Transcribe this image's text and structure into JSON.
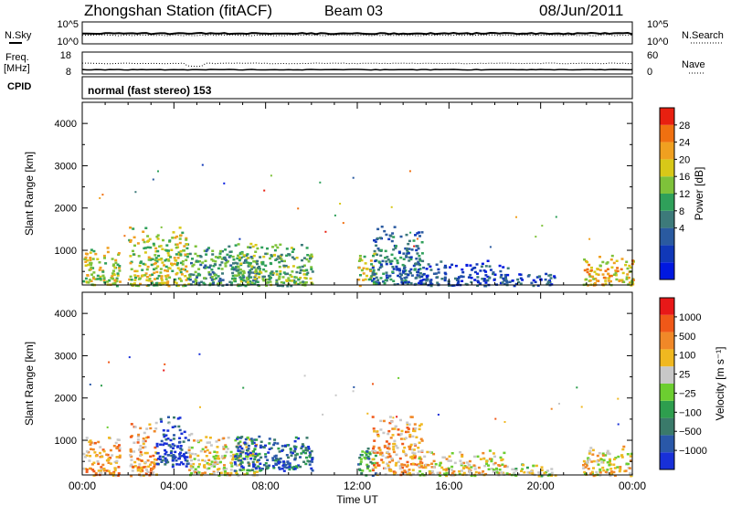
{
  "header": {
    "station": "Zhongshan Station (fitACF)",
    "beam": "Beam 03",
    "date": "08/Jun/2011"
  },
  "strips": {
    "nsky_label": "N.Sky",
    "nsky_ticks": [
      "10^5",
      "10^0"
    ],
    "nsearch_label": "N.Search",
    "nsearch_ticks": [
      "10^5",
      "10^0"
    ],
    "freq_label": "Freq.",
    "freq_unit": "[MHz]",
    "freq_ticks": [
      "18",
      "8"
    ],
    "nave_label": "Nave",
    "nave_ticks": [
      "60",
      "0"
    ],
    "cpid_label": "CPID",
    "cpid_value": "normal (fast stereo) 153"
  },
  "colors": {
    "power": [
      "#0018e0",
      "#1038b8",
      "#2a5aa0",
      "#3d7a7a",
      "#2fa05a",
      "#7ec23a",
      "#d8c818",
      "#f0a020",
      "#f07010",
      "#e82010"
    ],
    "velocity": [
      "#1830d8",
      "#2a58a8",
      "#3a7a6a",
      "#2e9e4e",
      "#6cce30",
      "#c8c8c8",
      "#f0b820",
      "#f08828",
      "#f05818",
      "#e81818"
    ]
  },
  "chart_data": [
    {
      "type": "heatmap",
      "name": "power-panel",
      "ylabel": "Slant Range [km]",
      "ylim": [
        180,
        4500
      ],
      "yticks": [
        "4000",
        "3000",
        "2000",
        "1000"
      ],
      "xlim": [
        0,
        24
      ],
      "colorbar": {
        "label": "Power [dB]",
        "ticks": [
          "28",
          "24",
          "20",
          "16",
          "12",
          "8",
          "4"
        ]
      },
      "regions": [
        {
          "x": [
            0.0,
            1.6
          ],
          "y": [
            180,
            1100
          ],
          "level": 6
        },
        {
          "x": [
            2.0,
            4.6
          ],
          "y": [
            180,
            1600
          ],
          "level": 6
        },
        {
          "x": [
            4.6,
            7.6
          ],
          "y": [
            180,
            1200
          ],
          "level": 4
        },
        {
          "x": [
            6.6,
            10.0
          ],
          "y": [
            180,
            1200
          ],
          "level": 5
        },
        {
          "x": [
            12.0,
            12.8
          ],
          "y": [
            180,
            1000
          ],
          "level": 6
        },
        {
          "x": [
            12.6,
            14.8
          ],
          "y": [
            200,
            1600
          ],
          "level": 3
        },
        {
          "x": [
            14.6,
            18.6
          ],
          "y": [
            180,
            800
          ],
          "level": 2
        },
        {
          "x": [
            18.6,
            20.6
          ],
          "y": [
            180,
            500
          ],
          "level": 2
        },
        {
          "x": [
            21.8,
            24.0
          ],
          "y": [
            180,
            900
          ],
          "level": 7
        }
      ]
    },
    {
      "type": "heatmap",
      "name": "velocity-panel",
      "ylabel": "Slant Range [km]",
      "ylim": [
        180,
        4500
      ],
      "yticks": [
        "4000",
        "3000",
        "2000",
        "1000"
      ],
      "xlim": [
        0,
        24
      ],
      "xticks": [
        "00:00",
        "04:00",
        "08:00",
        "12:00",
        "16:00",
        "20:00",
        "00:00"
      ],
      "xlabel": "Time UT",
      "colorbar": {
        "label": "Velocity [m s⁻¹]",
        "ticks": [
          "1000",
          "500",
          "100",
          "25",
          "−25",
          "−100",
          "−500",
          "−1000"
        ]
      },
      "regions": [
        {
          "x": [
            0.0,
            1.6
          ],
          "y": [
            180,
            1100
          ],
          "level": 7
        },
        {
          "x": [
            2.0,
            3.2
          ],
          "y": [
            180,
            1500
          ],
          "level": 7
        },
        {
          "x": [
            3.2,
            4.6
          ],
          "y": [
            400,
            1600
          ],
          "level": 1
        },
        {
          "x": [
            4.6,
            7.6
          ],
          "y": [
            180,
            1200
          ],
          "level": 6
        },
        {
          "x": [
            6.6,
            10.0
          ],
          "y": [
            300,
            1200
          ],
          "level": 2
        },
        {
          "x": [
            12.0,
            12.8
          ],
          "y": [
            180,
            1000
          ],
          "level": 3
        },
        {
          "x": [
            12.6,
            14.8
          ],
          "y": [
            200,
            1600
          ],
          "level": 7
        },
        {
          "x": [
            14.6,
            18.6
          ],
          "y": [
            180,
            800
          ],
          "level": 6
        },
        {
          "x": [
            18.6,
            20.6
          ],
          "y": [
            180,
            500
          ],
          "level": 5
        },
        {
          "x": [
            21.8,
            24.0
          ],
          "y": [
            180,
            900
          ],
          "level": 6
        }
      ]
    }
  ]
}
